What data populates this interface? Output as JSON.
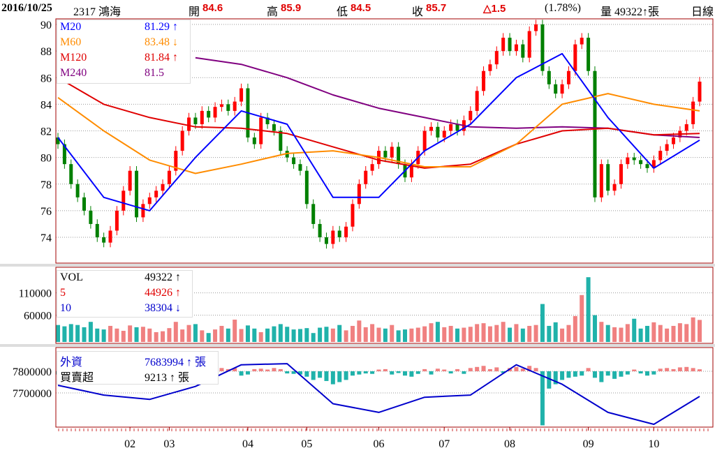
{
  "header": {
    "date": "2016/10/25",
    "stock": "2317 鴻海",
    "open_label": "開",
    "open": "84.6",
    "high_label": "高",
    "high": "85.9",
    "low_label": "低",
    "low": "84.5",
    "close_label": "收",
    "close": "85.7",
    "change": "△1.5",
    "change_pct": "(1.78%)",
    "volume": "量 49322↑張",
    "period": "日線"
  },
  "colors": {
    "up": "#f08080",
    "down": "#20b2aa",
    "candle_up": "#ff0000",
    "candle_down": "#008000",
    "m20": "#0000ff",
    "m60": "#ff8c00",
    "m120": "#e00000",
    "m240": "#800080",
    "frame": "#a00000"
  },
  "price_legend": [
    {
      "label": "M20",
      "value": "81.29 ↑"
    },
    {
      "label": "M60",
      "value": "83.48 ↓"
    },
    {
      "label": "M120",
      "value": "81.84 ↑"
    },
    {
      "label": "M240",
      "value": "81.5"
    }
  ],
  "volume_legend": [
    {
      "label": "VOL",
      "value": "49322 ↑"
    },
    {
      "label": "5",
      "value": "44926 ↑"
    },
    {
      "label": "10",
      "value": "38304 ↓"
    }
  ],
  "foreign_legend": [
    {
      "label": "外資",
      "value": "7683994 ↑ 張"
    },
    {
      "label": "買賣超",
      "value": "9213 ↑ 張"
    }
  ],
  "chart_data": {
    "type": "candlestick",
    "months": [
      {
        "label": "02",
        "index": 11
      },
      {
        "label": "03",
        "index": 17
      },
      {
        "label": "04",
        "index": 29
      },
      {
        "label": "05",
        "index": 38
      },
      {
        "label": "06",
        "index": 49
      },
      {
        "label": "07",
        "index": 59
      },
      {
        "label": "08",
        "index": 69
      },
      {
        "label": "09",
        "index": 81
      },
      {
        "label": "10",
        "index": 91
      }
    ],
    "price_axis": {
      "ticks": [
        74,
        76,
        78,
        80,
        82,
        84,
        86,
        88,
        90
      ],
      "range": [
        72.2,
        90.5
      ]
    },
    "close": [
      81,
      79.5,
      78,
      77,
      76,
      75,
      74,
      73.6,
      74.5,
      76,
      77.5,
      79,
      75.5,
      76.5,
      77,
      77.5,
      78,
      79,
      80.5,
      82,
      83,
      82.5,
      83.5,
      83,
      83.8,
      84,
      83.5,
      84.2,
      85.2,
      81.5,
      81,
      83,
      82.5,
      82,
      80.5,
      80,
      79.5,
      79,
      76.5,
      75,
      74,
      73.5,
      74.5,
      74,
      74.8,
      76.5,
      78,
      79,
      79.5,
      80.5,
      80,
      80.8,
      79.5,
      78.5,
      79.5,
      80.5,
      82,
      82.3,
      81.5,
      82,
      82.5,
      82,
      82.8,
      83.5,
      85,
      86.5,
      87,
      88,
      89,
      88,
      88.5,
      87.5,
      89.5,
      90,
      86.5,
      85.5,
      84.8,
      85.5,
      86.5,
      88.5,
      89,
      86.5,
      77,
      79.5,
      77.5,
      78,
      79.5,
      80,
      79.8,
      79.5,
      79.2,
      79.8,
      80.5,
      81,
      81.5,
      82,
      82.5,
      84.2,
      85.7
    ],
    "ma_sample_step": 7,
    "m20": [
      81.5,
      77,
      76,
      80,
      83.5,
      82.5,
      77,
      77,
      80.5,
      82.5,
      86,
      87.8,
      83,
      79.2,
      81.3
    ],
    "m60": [
      84.5,
      82,
      79.8,
      78.8,
      79.5,
      80.3,
      80.5,
      80,
      79.3,
      79.3,
      81,
      84,
      84.8,
      84,
      83.5
    ],
    "m120": [
      86,
      84,
      83,
      82.3,
      82.2,
      81.8,
      80.8,
      79.8,
      79.2,
      79.5,
      81,
      82,
      82.2,
      81.7,
      81.8
    ],
    "m240": [
      null,
      null,
      null,
      87.5,
      87,
      86,
      84.7,
      83.7,
      83,
      82.3,
      82.2,
      82.3,
      82.2,
      81.7,
      81.5
    ],
    "volume_axis": {
      "ticks": [
        60000,
        110000
      ],
      "max": 145000
    },
    "volume": [
      38000,
      35000,
      40000,
      38000,
      33000,
      45000,
      30000,
      28000,
      36000,
      30000,
      25000,
      37000,
      33000,
      34000,
      30000,
      22000,
      24000,
      31000,
      45000,
      28000,
      38000,
      40000,
      26000,
      20000,
      28000,
      36000,
      30000,
      50000,
      29000,
      37000,
      30000,
      22000,
      30000,
      35000,
      40000,
      34000,
      28000,
      29000,
      31000,
      20000,
      32000,
      34000,
      30000,
      38000,
      26000,
      36000,
      48000,
      33000,
      40000,
      32000,
      30000,
      38000,
      26000,
      28000,
      30000,
      32000,
      35000,
      42000,
      45000,
      33000,
      36000,
      30000,
      32000,
      34000,
      40000,
      42000,
      35000,
      38000,
      45000,
      32000,
      40000,
      30000,
      36000,
      38000,
      85000,
      36000,
      44000,
      30000,
      38000,
      58000,
      105000,
      145000,
      60000,
      45000,
      38000,
      33000,
      32000,
      40000,
      52000,
      30000,
      36000,
      44000,
      38000,
      30000,
      36000,
      42000,
      40000,
      55000,
      49322
    ],
    "foreign_axis": {
      "ticks": [
        7700000,
        7800000
      ]
    },
    "foreign_holdings": [
      7735000,
      7690000,
      7670000,
      7730000,
      7830000,
      7835000,
      7650000,
      7610000,
      7680000,
      7690000,
      7830000,
      7740000,
      7610000,
      7555000,
      7683994
    ],
    "foreign_net": [
      -15000,
      -10000,
      -5000,
      -20000,
      -8000,
      -10000,
      -5000,
      -3000,
      -6000,
      -15000,
      -8000,
      -12000,
      -20000,
      -5000,
      -8000,
      -3000,
      5000,
      8000,
      12000,
      10000,
      15000,
      10000,
      8000,
      6000,
      12000,
      15000,
      10000,
      15000,
      -20000,
      -15000,
      10000,
      12000,
      8000,
      15000,
      10000,
      -10000,
      -12000,
      -15000,
      -25000,
      -40000,
      -30000,
      -45000,
      -60000,
      -50000,
      -40000,
      -20000,
      -15000,
      -10000,
      -12000,
      8000,
      10000,
      -15000,
      -8000,
      -20000,
      -25000,
      -12000,
      10000,
      -15000,
      12000,
      8000,
      -10000,
      10000,
      -12000,
      15000,
      20000,
      25000,
      10000,
      18000,
      -8000,
      15000,
      20000,
      12000,
      25000,
      15000,
      -250000,
      -80000,
      -60000,
      -40000,
      -30000,
      -25000,
      -20000,
      15000,
      -30000,
      -50000,
      -20000,
      -35000,
      -25000,
      -15000,
      8000,
      -10000,
      -20000,
      -15000,
      12000,
      15000,
      10000,
      18000,
      20000,
      15000,
      9213
    ]
  }
}
